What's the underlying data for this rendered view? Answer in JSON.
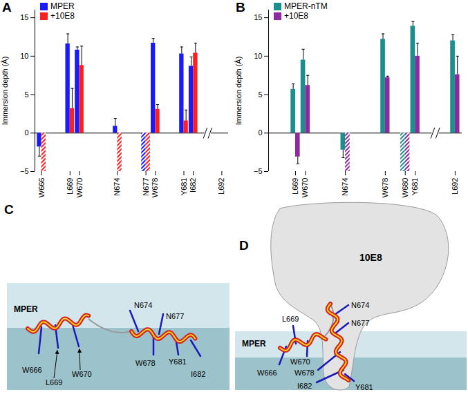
{
  "chart_data": [
    {
      "type": "bar",
      "title": "A",
      "y_label": "Immersion depth (Å)",
      "categories": [
        "W666",
        null,
        null,
        "L669",
        "W670",
        null,
        null,
        null,
        "N674",
        null,
        null,
        "N677",
        "W678",
        null,
        null,
        "Y681",
        "I682",
        null,
        null,
        "L692"
      ],
      "ylim": [
        -5,
        16
      ],
      "yticks": [
        -5,
        0,
        5,
        10,
        15
      ],
      "legend": "top-left",
      "series": [
        {
          "name": "MPER",
          "color": "#1a1aff",
          "values": [
            -1.8,
            null,
            null,
            11.6,
            10.8,
            null,
            null,
            null,
            0.9,
            null,
            null,
            -5,
            11.7,
            null,
            null,
            10.3,
            8.7,
            null,
            null,
            null
          ],
          "errors": [
            1.2,
            null,
            null,
            1.3,
            0.4,
            null,
            null,
            null,
            1.0,
            null,
            null,
            null,
            0.6,
            null,
            null,
            0.9,
            1.2,
            null,
            null,
            null
          ],
          "hatched": [
            false,
            false,
            false,
            false,
            false,
            false,
            false,
            false,
            false,
            false,
            false,
            true,
            false,
            false,
            false,
            false,
            false,
            false,
            false,
            false
          ]
        },
        {
          "name": "+10E8",
          "color": "#ff1f1f",
          "values": [
            -5,
            null,
            null,
            3.2,
            8.8,
            null,
            null,
            null,
            -5,
            null,
            null,
            -5,
            3.1,
            null,
            null,
            1.6,
            10.4,
            null,
            null,
            null
          ],
          "errors": [
            null,
            null,
            null,
            2.6,
            2.5,
            null,
            null,
            null,
            null,
            null,
            null,
            null,
            0.6,
            null,
            null,
            1.4,
            1.3,
            null,
            null,
            null
          ],
          "hatched": [
            true,
            false,
            false,
            false,
            false,
            false,
            false,
            false,
            true,
            false,
            false,
            true,
            false,
            false,
            false,
            false,
            false,
            false,
            false,
            false
          ]
        }
      ]
    },
    {
      "type": "bar",
      "title": "B",
      "y_label": "Immersion depth (Å)",
      "categories": [
        null,
        null,
        "L669",
        "W670",
        null,
        null,
        null,
        "N674",
        null,
        null,
        null,
        "W678",
        null,
        "W680",
        "Y681",
        null,
        null,
        null,
        "L692"
      ],
      "ylim": [
        -5,
        16
      ],
      "yticks": [
        -5,
        0,
        5,
        10,
        15
      ],
      "legend": "top-left",
      "series": [
        {
          "name": "MPER-nTM",
          "color": "#1b8e8e",
          "values": [
            null,
            null,
            5.7,
            9.5,
            null,
            null,
            null,
            -2.2,
            null,
            null,
            null,
            12.2,
            null,
            -5,
            13.9,
            null,
            null,
            null,
            12.0
          ],
          "errors": [
            null,
            null,
            0.7,
            1.4,
            null,
            null,
            null,
            1.0,
            null,
            null,
            null,
            0.7,
            null,
            null,
            0.6,
            null,
            null,
            null,
            0.8
          ],
          "hatched": [
            false,
            false,
            false,
            false,
            false,
            false,
            false,
            false,
            false,
            false,
            false,
            false,
            false,
            true,
            false,
            false,
            false,
            false,
            false
          ]
        },
        {
          "name": "+10E8",
          "color": "#8e2a9e",
          "values": [
            null,
            null,
            -3.1,
            6.2,
            null,
            null,
            null,
            -5,
            null,
            null,
            null,
            7.2,
            null,
            -5,
            10.0,
            null,
            null,
            null,
            7.6
          ],
          "errors": [
            null,
            null,
            0.9,
            1.3,
            null,
            null,
            null,
            null,
            null,
            null,
            null,
            0.2,
            null,
            null,
            1.7,
            null,
            null,
            null,
            2.4
          ],
          "hatched": [
            false,
            false,
            false,
            false,
            false,
            false,
            false,
            true,
            false,
            false,
            false,
            false,
            false,
            true,
            false,
            false,
            false,
            false,
            false
          ]
        }
      ]
    }
  ],
  "diagrams": [
    {
      "title": "C",
      "molecule": "MPER",
      "residues": [
        "W666",
        "L669",
        "W670",
        "N674",
        "N677",
        "W678",
        "Y681",
        "I682"
      ]
    },
    {
      "title": "D",
      "molecule": "MPER",
      "antibody": "10E8",
      "residues": [
        "L669",
        "N674",
        "N677",
        "W666",
        "W670",
        "W678",
        "I682",
        "Y681"
      ]
    }
  ]
}
